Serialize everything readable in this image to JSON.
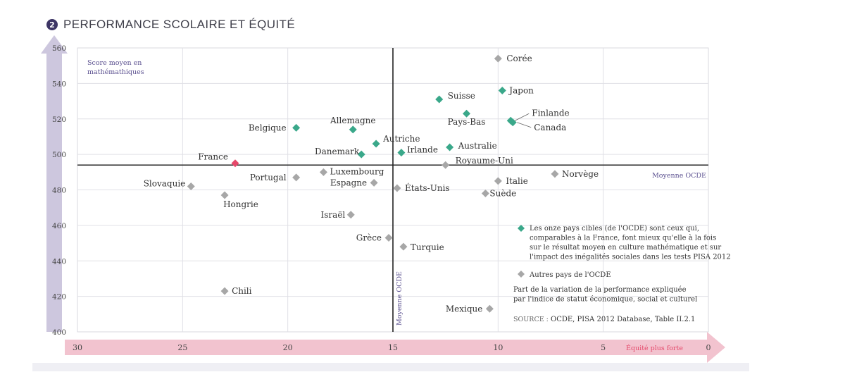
{
  "header": {
    "badge": "2",
    "title": "PERFORMANCE SCOLAIRE ET ÉQUITÉ"
  },
  "colors": {
    "target": "#3aa88a",
    "other": "#a7a7a7",
    "france": "#e5486a",
    "y_arrow": "#cdc7de",
    "x_arrow": "#f2c3cf",
    "accent_text": "#5a4f8f",
    "pink_text": "#e5486a"
  },
  "chart_data": {
    "type": "scatter",
    "ylabel": "Score moyen en mathémathiques",
    "xlabel": "Équité plus forte",
    "xlim": [
      30,
      0
    ],
    "ylim": [
      400,
      560
    ],
    "x_ticks": [
      "30",
      "25",
      "20",
      "15",
      "10",
      "5",
      "0"
    ],
    "y_ticks": [
      "400",
      "420",
      "440",
      "460",
      "480",
      "500",
      "520",
      "540",
      "560"
    ],
    "oecd_mean": {
      "x": 15.0,
      "y": 494,
      "h_label": "Moyenne OCDE",
      "v_label": "Moyenne OCDE"
    },
    "series": [
      {
        "name": "Les onze pays cibles (de l'OCDE) sont ceux qui, comparables à la France, font mieux qu'elle à la fois sur le résultat moyen en culture mathématique et sur l'impact des inégalités sociales dans les tests PISA 2012",
        "color": "#3aa88a",
        "points": [
          {
            "label": "Japon",
            "x": 9.8,
            "y": 536
          },
          {
            "label": "Suisse",
            "x": 12.8,
            "y": 531
          },
          {
            "label": "Pays-Bas",
            "x": 11.5,
            "y": 523
          },
          {
            "label": "Finlande",
            "x": 9.4,
            "y": 519
          },
          {
            "label": "Canada",
            "x": 9.3,
            "y": 518
          },
          {
            "label": "Belgique",
            "x": 19.6,
            "y": 515
          },
          {
            "label": "Allemagne",
            "x": 16.9,
            "y": 514
          },
          {
            "label": "Autriche",
            "x": 15.8,
            "y": 506
          },
          {
            "label": "Australie",
            "x": 12.3,
            "y": 504
          },
          {
            "label": "Irlande",
            "x": 14.6,
            "y": 501
          },
          {
            "label": "Danemark",
            "x": 16.5,
            "y": 500
          }
        ]
      },
      {
        "name": "France",
        "color": "#e5486a",
        "points": [
          {
            "label": "France",
            "x": 22.5,
            "y": 495
          }
        ]
      },
      {
        "name": "Autres pays de l'OCDE",
        "color": "#a7a7a7",
        "points": [
          {
            "label": "Corée",
            "x": 10.0,
            "y": 554
          },
          {
            "label": "Royaume-Uni",
            "x": 12.5,
            "y": 494
          },
          {
            "label": "Norvège",
            "x": 7.3,
            "y": 489
          },
          {
            "label": "Luxembourg",
            "x": 18.3,
            "y": 490
          },
          {
            "label": "Portugal",
            "x": 19.6,
            "y": 487
          },
          {
            "label": "Italie",
            "x": 10.0,
            "y": 485
          },
          {
            "label": "Espagne",
            "x": 15.9,
            "y": 484
          },
          {
            "label": "États-Unis",
            "x": 14.8,
            "y": 481
          },
          {
            "label": "Slovaquie",
            "x": 24.6,
            "y": 482
          },
          {
            "label": "Suède",
            "x": 10.6,
            "y": 478
          },
          {
            "label": "Hongrie",
            "x": 23.0,
            "y": 477
          },
          {
            "label": "Israël",
            "x": 17.0,
            "y": 466
          },
          {
            "label": "Grèce",
            "x": 15.2,
            "y": 453
          },
          {
            "label": "Turquie",
            "x": 14.5,
            "y": 448
          },
          {
            "label": "Chili",
            "x": 23.0,
            "y": 423
          },
          {
            "label": "Mexique",
            "x": 10.4,
            "y": 413
          }
        ]
      }
    ],
    "notes": [
      "Part de la variation de la performance expliquée",
      "par l'indice de statut économique, social et culturel"
    ],
    "source": {
      "prefix": "SOURCE :",
      "text": "OCDE, PISA 2012 Database, Table II.2.1"
    },
    "grid": true,
    "legend": "bottom-right"
  }
}
